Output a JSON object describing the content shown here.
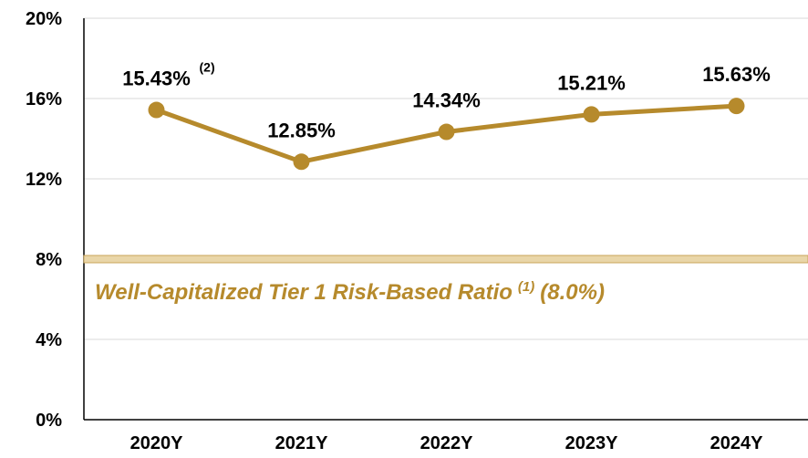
{
  "chart_data": {
    "type": "line",
    "categories": [
      "2020Y",
      "2021Y",
      "2022Y",
      "2023Y",
      "2024Y"
    ],
    "series": [
      {
        "name": "Tier 1 Risk-Based Ratio",
        "color": "#b68a2c",
        "values": [
          15.43,
          12.85,
          14.34,
          15.21,
          15.63
        ],
        "value_labels": [
          "15.43%",
          "12.85%",
          "14.34%",
          "15.21%",
          "15.63%"
        ],
        "value_label_notes": [
          "(2)",
          null,
          null,
          null,
          null
        ]
      }
    ],
    "ylim": [
      0,
      20
    ],
    "yticks": [
      {
        "value": 0,
        "label": "0%"
      },
      {
        "value": 4,
        "label": "4%"
      },
      {
        "value": 8,
        "label": "8%"
      },
      {
        "value": 12,
        "label": "12%"
      },
      {
        "value": 16,
        "label": "16%"
      },
      {
        "value": 20,
        "label": "20%"
      }
    ],
    "grid": true,
    "reference_line": {
      "value": 8.0,
      "color": "#e9d6a8",
      "label": "Well-Capitalized Tier 1 Risk-Based Ratio",
      "note": "(1)",
      "value_label": "(8.0%)"
    }
  }
}
